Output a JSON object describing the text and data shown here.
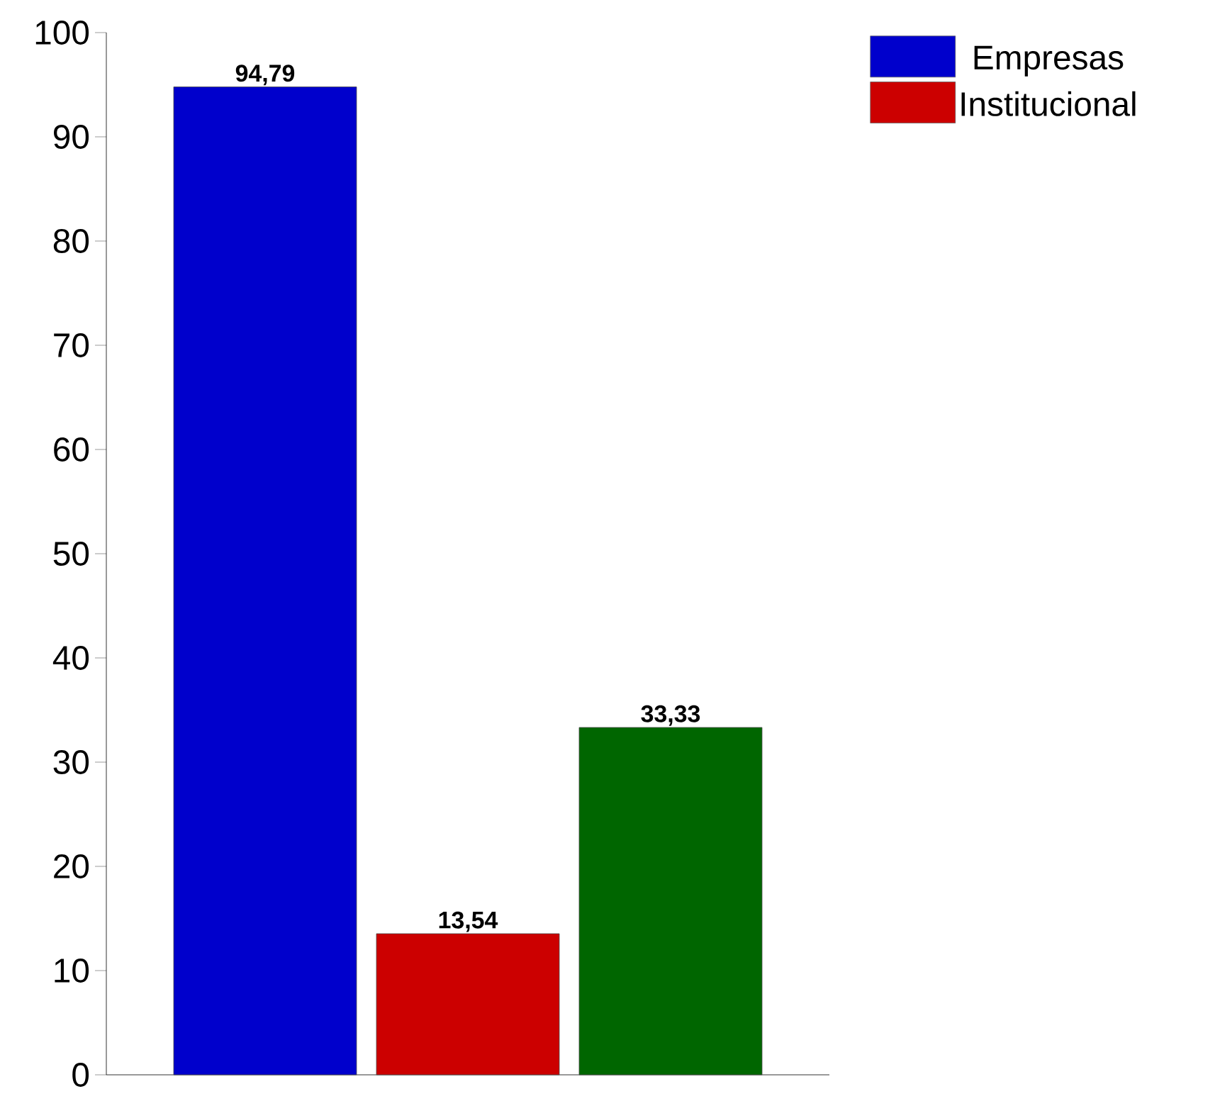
{
  "chart_data": {
    "type": "bar",
    "categories": [
      null
    ],
    "series": [
      {
        "name": "Empresas",
        "color": "#0000cc",
        "values": [
          94.79
        ],
        "value_labels": [
          "94,79"
        ]
      },
      {
        "name": "Institucional",
        "color": "#cc0000",
        "values": [
          13.54
        ],
        "value_labels": [
          "13,54"
        ]
      },
      {
        "color": "#006600",
        "values": [
          33.33
        ],
        "value_labels": [
          "33,33"
        ]
      }
    ],
    "ylim": [
      0,
      100
    ],
    "yticks": [
      0,
      10,
      20,
      30,
      40,
      50,
      60,
      70,
      80,
      90,
      100
    ],
    "legend": "top right",
    "grid": false
  }
}
